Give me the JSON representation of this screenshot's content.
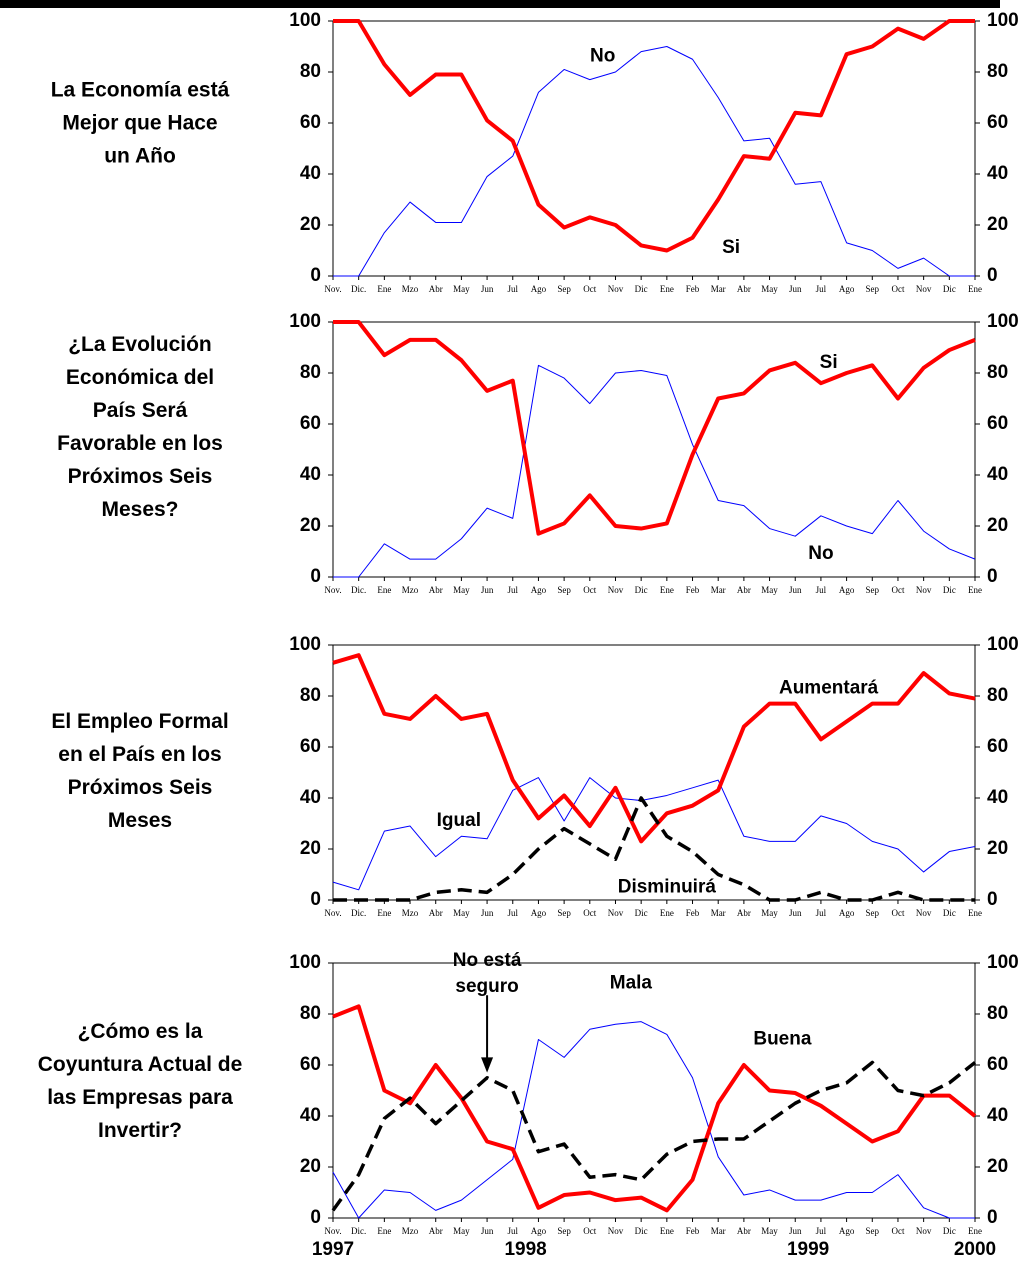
{
  "chart_data": [
    {
      "type": "line",
      "title_lines": [
        "La Economía está",
        "Mejor que Hace",
        "un Año"
      ],
      "categories": [
        "Nov.",
        "Dic.",
        "Ene",
        "Mzo",
        "Abr",
        "May",
        "Jun",
        "Jul",
        "Ago",
        "Sep",
        "Oct",
        "Nov",
        "Dic",
        "Ene",
        "Feb",
        "Mar",
        "Abr",
        "May",
        "Jun",
        "Jul",
        "Ago",
        "Sep",
        "Oct",
        "Nov",
        "Dic",
        "Ene"
      ],
      "series": [
        {
          "name": "Si",
          "color": "#ff0000",
          "style": "thick",
          "values": [
            100,
            100,
            83,
            71,
            79,
            79,
            61,
            53,
            28,
            19,
            23,
            20,
            12,
            10,
            15,
            30,
            47,
            46,
            64,
            63,
            87,
            90,
            97,
            93,
            100,
            100
          ]
        },
        {
          "name": "No",
          "color": "#0000ff",
          "style": "thin",
          "values": [
            0,
            0,
            17,
            29,
            21,
            21,
            39,
            47,
            72,
            81,
            77,
            80,
            88,
            90,
            85,
            70,
            53,
            54,
            36,
            37,
            13,
            10,
            3,
            7,
            0,
            0
          ]
        }
      ],
      "ylim": [
        0,
        100
      ],
      "yticks": [
        0,
        20,
        40,
        60,
        80,
        100
      ],
      "y2lim": [
        0,
        100
      ],
      "y2ticks": [
        0,
        20,
        40,
        60,
        80,
        100
      ]
    },
    {
      "type": "line",
      "title_lines": [
        "¿La Evolución",
        "Económica del",
        "País Será",
        "Favorable en los",
        "Próximos Seis",
        "Meses?"
      ],
      "categories": [
        "Nov.",
        "Dic.",
        "Ene",
        "Mzo",
        "Abr",
        "May",
        "Jun",
        "Jul",
        "Ago",
        "Sep",
        "Oct",
        "Nov",
        "Dic",
        "Ene",
        "Feb",
        "Mar",
        "Abr",
        "May",
        "Jun",
        "Jul",
        "Ago",
        "Sep",
        "Oct",
        "Nov",
        "Dic",
        "Ene"
      ],
      "series": [
        {
          "name": "Si",
          "color": "#ff0000",
          "style": "thick",
          "values": [
            100,
            100,
            87,
            93,
            93,
            85,
            73,
            77,
            17,
            21,
            32,
            20,
            19,
            21,
            48,
            70,
            72,
            81,
            84,
            76,
            80,
            83,
            70,
            82,
            89,
            93
          ]
        },
        {
          "name": "No",
          "color": "#0000ff",
          "style": "thin",
          "values": [
            0,
            0,
            13,
            7,
            7,
            15,
            27,
            23,
            83,
            78,
            68,
            80,
            81,
            79,
            52,
            30,
            28,
            19,
            16,
            24,
            20,
            17,
            30,
            18,
            11,
            7
          ]
        }
      ],
      "ylim": [
        0,
        100
      ],
      "yticks": [
        0,
        20,
        40,
        60,
        80,
        100
      ],
      "y2lim": [
        0,
        100
      ],
      "y2ticks": [
        0,
        20,
        40,
        60,
        80,
        100
      ]
    },
    {
      "type": "line",
      "title_lines": [
        "El Empleo Formal",
        "en el País en los",
        "Próximos Seis",
        "Meses"
      ],
      "categories": [
        "Nov.",
        "Dic.",
        "Ene",
        "Mzo",
        "Abr",
        "May",
        "Jun",
        "Jul",
        "Ago",
        "Sep",
        "Oct",
        "Nov",
        "Dic",
        "Ene",
        "Feb",
        "Mar",
        "Abr",
        "May",
        "Jun",
        "Jul",
        "Ago",
        "Sep",
        "Oct",
        "Nov",
        "Dic",
        "Ene"
      ],
      "series": [
        {
          "name": "Aumentará",
          "color": "#ff0000",
          "style": "thick",
          "values": [
            93,
            96,
            73,
            71,
            80,
            71,
            73,
            47,
            32,
            41,
            29,
            44,
            23,
            34,
            37,
            43,
            68,
            77,
            77,
            63,
            70,
            77,
            77,
            89,
            81,
            79
          ]
        },
        {
          "name": "Igual",
          "color": "#0000ff",
          "style": "thin",
          "values": [
            7,
            4,
            27,
            29,
            17,
            25,
            24,
            43,
            48,
            31,
            48,
            40,
            39,
            41,
            44,
            47,
            25,
            23,
            23,
            33,
            30,
            23,
            20,
            11,
            19,
            21
          ]
        },
        {
          "name": "Disminuirá",
          "color": "#000000",
          "style": "dashed",
          "values": [
            0,
            0,
            0,
            0,
            3,
            4,
            3,
            10,
            20,
            28,
            22,
            16,
            40,
            25,
            19,
            10,
            6,
            0,
            0,
            3,
            0,
            0,
            3,
            0,
            0,
            0
          ]
        }
      ],
      "ylim": [
        0,
        100
      ],
      "yticks": [
        0,
        20,
        40,
        60,
        80,
        100
      ],
      "y2lim": [
        0,
        100
      ],
      "y2ticks": [
        0,
        20,
        40,
        60,
        80,
        100
      ]
    },
    {
      "type": "line",
      "title_lines": [
        "¿Cómo es la",
        "Coyuntura Actual de",
        "las Empresas para",
        "Invertir?"
      ],
      "categories": [
        "Nov.",
        "Dic.",
        "Ene",
        "Mzo",
        "Abr",
        "May",
        "Jun",
        "Jul",
        "Ago",
        "Sep",
        "Oct",
        "Nov",
        "Dic",
        "Ene",
        "Feb",
        "Mar",
        "Abr",
        "May",
        "Jun",
        "Jul",
        "Ago",
        "Sep",
        "Oct",
        "Nov",
        "Dic",
        "Ene"
      ],
      "year_labels": [
        "1997",
        "1998",
        "1999",
        "2000"
      ],
      "series": [
        {
          "name": "Buena",
          "color": "#ff0000",
          "style": "thick",
          "values": [
            79,
            83,
            50,
            45,
            60,
            47,
            30,
            27,
            4,
            9,
            10,
            7,
            8,
            3,
            15,
            45,
            60,
            50,
            49,
            44,
            37,
            30,
            34,
            48,
            48,
            40
          ]
        },
        {
          "name": "Mala",
          "color": "#0000ff",
          "style": "thin",
          "values": [
            18,
            0,
            11,
            10,
            3,
            7,
            15,
            23,
            70,
            63,
            74,
            76,
            77,
            72,
            55,
            24,
            9,
            11,
            7,
            7,
            10,
            10,
            17,
            4,
            0,
            0
          ]
        },
        {
          "name": "No está seguro",
          "color": "#000000",
          "style": "dashed",
          "values": [
            3,
            17,
            39,
            47,
            37,
            46,
            55,
            50,
            26,
            29,
            16,
            17,
            15,
            25,
            30,
            31,
            31,
            38,
            45,
            50,
            53,
            61,
            50,
            48,
            53,
            61
          ]
        }
      ],
      "ylim": [
        0,
        100
      ],
      "yticks": [
        0,
        20,
        40,
        60,
        80,
        100
      ],
      "y2lim": [
        0,
        100
      ],
      "y2ticks": [
        0,
        20,
        40,
        60,
        80,
        100
      ]
    }
  ]
}
